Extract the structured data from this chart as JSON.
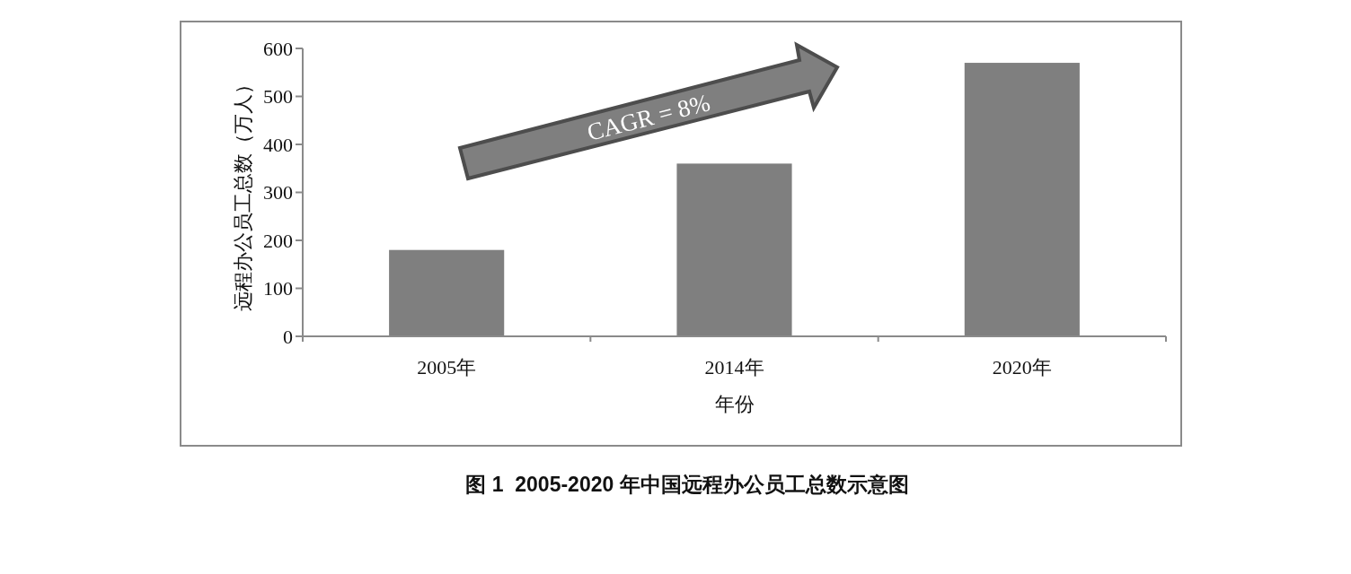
{
  "chart_data": {
    "type": "bar",
    "title": "图 1  2005-2020 年中国远程办公员工总数示意图",
    "xlabel": "年份",
    "ylabel": "远程办公员工总数（万人）",
    "categories": [
      "2005年",
      "2014年",
      "2020年"
    ],
    "values": [
      180,
      360,
      570
    ],
    "color": "#7f7f7f",
    "ylim": [
      0,
      600
    ],
    "yticks": [
      0,
      100,
      200,
      300,
      400,
      500,
      600
    ],
    "grid": false,
    "annotations": [
      "CAGR = 8%"
    ]
  }
}
